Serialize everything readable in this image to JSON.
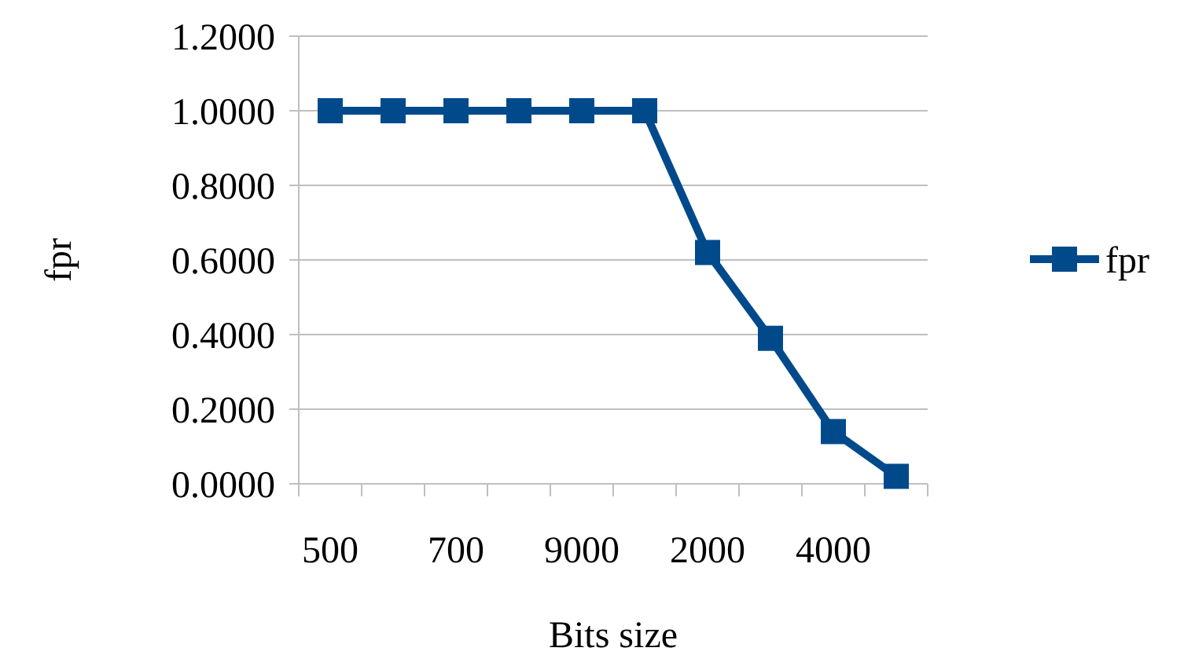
{
  "chart_data": {
    "type": "line",
    "xlabel": "Bits size",
    "ylabel": "fpr",
    "categories": [
      "500",
      null,
      "700",
      null,
      "9000",
      null,
      "2000",
      null,
      "4000",
      null
    ],
    "series": [
      {
        "name": "fpr",
        "color": "#004a8c",
        "values": [
          1,
          1,
          1,
          1,
          1,
          1,
          0.62,
          0.39,
          0.14,
          0.02
        ]
      }
    ],
    "ylim": [
      0,
      1.2
    ],
    "yticks": [
      {
        "value": 0,
        "label": "0.0000"
      },
      {
        "value": 0.2,
        "label": "0.2000"
      },
      {
        "value": 0.4,
        "label": "0.4000"
      },
      {
        "value": 0.6,
        "label": "0.6000"
      },
      {
        "value": 0.8,
        "label": "0.8000"
      },
      {
        "value": 1,
        "label": "1.0000"
      },
      {
        "value": 1.2,
        "label": "1.2000"
      }
    ],
    "grid": "y",
    "legend": "right",
    "marker": "square",
    "line_style": "solid"
  }
}
